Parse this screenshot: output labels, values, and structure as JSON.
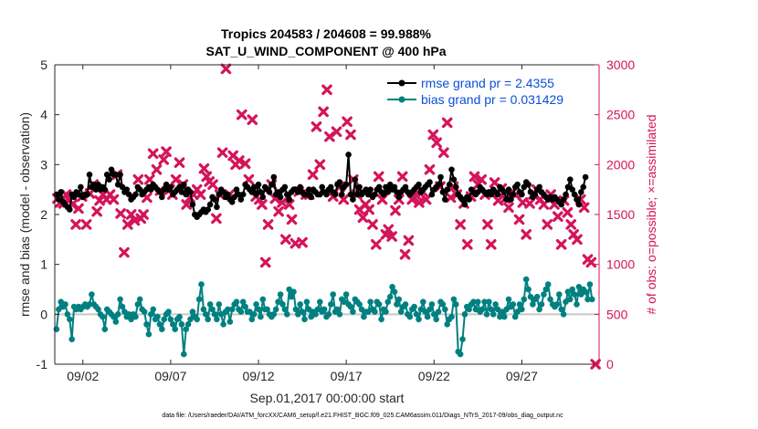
{
  "chart_data": {
    "type": "scatter",
    "title_line1": "Tropics 204583 / 204608 = 99.988%",
    "title_line2": "SAT_U_WIND_COMPONENT @ 400 hPa",
    "xlabel": "Sep.01,2017 00:00:00 start",
    "ylabel_left": "rmse and bias (model - observation)",
    "ylabel_right": "# of obs: o=possible; ×=assimilated",
    "footnote": "data file: /Users/raeder/DAI/ATM_forcXX/CAM6_setup/f.e21.FHIST_BGC.f09_025.CAM6assim.011/Diags_NTrS_2017-09/obs_diag_output.nc",
    "x_range": [
      0.4,
      31.4
    ],
    "y_left_range": [
      -1,
      5
    ],
    "y_right_range": [
      0,
      3000
    ],
    "x_ticks": [
      {
        "x": 2,
        "label": "09/02"
      },
      {
        "x": 7,
        "label": "09/07"
      },
      {
        "x": 12,
        "label": "09/12"
      },
      {
        "x": 17,
        "label": "09/17"
      },
      {
        "x": 22,
        "label": "09/22"
      },
      {
        "x": 27,
        "label": "09/27"
      }
    ],
    "y_left_ticks": [
      "-1",
      "0",
      "1",
      "2",
      "3",
      "4",
      "5"
    ],
    "y_right_ticks": [
      "0",
      "500",
      "1000",
      "1500",
      "2000",
      "2500",
      "3000"
    ],
    "zero_line": 0,
    "legend": [
      {
        "label": "rmse grand pr = 2.4355",
        "color": "#000000"
      },
      {
        "label": "bias grand pr = 0.031429",
        "color": "#008080"
      }
    ],
    "colors": {
      "rmse": "#000000",
      "bias": "#008080",
      "obs": "#d4145a",
      "zero": "#c8c8c8",
      "axis": "#262626"
    },
    "t0": 0.5,
    "dt": 0.125,
    "rmse": [
      2.4,
      2.3,
      2.45,
      2.25,
      2.2,
      2.15,
      2.1,
      2.4,
      2.35,
      2.45,
      2.4,
      2.55,
      2.35,
      2.4,
      2.4,
      2.8,
      2.55,
      2.6,
      2.5,
      2.6,
      2.5,
      2.55,
      2.5,
      2.8,
      2.7,
      2.9,
      2.8,
      2.8,
      2.6,
      2.8,
      2.55,
      2.45,
      2.5,
      2.4,
      2.3,
      2.35,
      2.4,
      2.55,
      2.5,
      2.4,
      2.45,
      2.5,
      2.55,
      2.5,
      2.6,
      2.55,
      2.5,
      2.45,
      2.35,
      2.5,
      2.6,
      2.5,
      2.55,
      2.4,
      2.45,
      2.5,
      2.55,
      2.45,
      2.6,
      2.4,
      2.5,
      2.45,
      2.2,
      2.0,
      1.95,
      2.0,
      2.05,
      2.1,
      2.05,
      2.1,
      2.2,
      2.35,
      2.3,
      2.15,
      2.4,
      2.5,
      2.45,
      2.35,
      2.4,
      2.3,
      2.25,
      2.35,
      2.5,
      2.4,
      2.3,
      2.4,
      2.6,
      2.55,
      2.5,
      2.45,
      2.55,
      2.4,
      2.6,
      2.45,
      2.35,
      2.55,
      2.5,
      2.45,
      2.6,
      2.75,
      2.4,
      2.45,
      2.35,
      2.5,
      2.55,
      2.4,
      2.3,
      2.45,
      2.5,
      2.5,
      2.45,
      2.55,
      2.45,
      2.4,
      2.4,
      2.5,
      2.35,
      2.5,
      2.45,
      2.4,
      2.4,
      2.55,
      2.45,
      2.4,
      2.5,
      2.55,
      2.45,
      2.4,
      2.6,
      2.65,
      2.4,
      2.55,
      2.6,
      3.2,
      2.4,
      2.3,
      2.7,
      2.4,
      2.55,
      2.4,
      2.45,
      2.5,
      2.4,
      2.5,
      2.35,
      2.4,
      2.5,
      2.55,
      2.45,
      2.4,
      2.55,
      2.45,
      2.6,
      2.5,
      2.55,
      2.45,
      2.35,
      2.45,
      2.5,
      2.55,
      2.45,
      2.4,
      2.45,
      2.5,
      2.55,
      2.6,
      2.45,
      2.5,
      2.55,
      2.6,
      2.65,
      2.4,
      2.5,
      2.55,
      2.6,
      2.75,
      2.45,
      2.3,
      2.5,
      2.6,
      2.9,
      2.7,
      2.55,
      2.4,
      2.35,
      2.3,
      2.2,
      2.35,
      2.3,
      2.5,
      2.45,
      2.4,
      2.45,
      2.55,
      2.5,
      2.45,
      2.4,
      2.45,
      2.4,
      2.5,
      2.45,
      2.4,
      2.55,
      2.5,
      2.45,
      2.3,
      2.5,
      2.3,
      2.4,
      2.55,
      2.6,
      2.45,
      2.4,
      2.55,
      2.65,
      2.6,
      2.45,
      2.35,
      2.4,
      2.5,
      2.55,
      2.45,
      2.4,
      2.35,
      2.3,
      2.35,
      2.3,
      2.35,
      2.3,
      2.25,
      2.2,
      2.3,
      2.4,
      2.55,
      2.7,
      2.5,
      2.4,
      2.3,
      2.2,
      2.45,
      2.55,
      2.75
    ],
    "bias": [
      -0.3,
      0.1,
      0.25,
      0.15,
      0.2,
      0.0,
      -0.1,
      -0.5,
      0.15,
      0.1,
      0.15,
      0.1,
      0.15,
      0.2,
      0.15,
      0.2,
      0.4,
      0.2,
      0.15,
      0.1,
      0.0,
      -0.05,
      -0.3,
      0.1,
      0.05,
      0.0,
      -0.05,
      -0.15,
      0.0,
      0.3,
      0.15,
      0.05,
      -0.05,
      0.0,
      -0.1,
      0.0,
      -0.05,
      0.2,
      0.3,
      0.1,
      0.05,
      -0.2,
      -0.4,
      0.0,
      0.1,
      -0.1,
      -0.05,
      -0.2,
      -0.3,
      -0.1,
      0.0,
      0.05,
      -0.1,
      -0.2,
      -0.3,
      -0.1,
      -0.05,
      -0.2,
      -0.8,
      -0.3,
      -0.2,
      -0.1,
      0.05,
      -0.05,
      -0.1,
      0.3,
      0.6,
      0.1,
      0.0,
      -0.1,
      0.2,
      0.1,
      0.0,
      -0.1,
      0.2,
      0.0,
      -0.2,
      0.05,
      0.1,
      -0.15,
      0.1,
      0.2,
      0.25,
      0.1,
      0.05,
      0.25,
      0.15,
      0.05,
      0.05,
      -0.1,
      0.0,
      0.2,
      0.1,
      -0.05,
      0.3,
      0.1,
      0.1,
      0.0,
      -0.05,
      0.0,
      0.1,
      0.25,
      0.4,
      0.2,
      0.1,
      0.0,
      0.5,
      0.35,
      0.45,
      0.1,
      0.0,
      0.2,
      0.05,
      -0.1,
      0.25,
      0.1,
      -0.05,
      0.05,
      0.0,
      0.1,
      0.25,
      0.05,
      0.1,
      -0.05,
      0.0,
      0.2,
      0.4,
      0.05,
      0.1,
      0.0,
      0.3,
      0.25,
      0.4,
      0.2,
      0.15,
      0.05,
      0.3,
      0.25,
      0.2,
      0.1,
      -0.05,
      0.05,
      0.05,
      0.25,
      0.1,
      0.05,
      0.25,
      0.2,
      -0.1,
      0.1,
      0.05,
      0.25,
      0.35,
      0.55,
      0.45,
      0.2,
      0.3,
      0.05,
      0.15,
      0.2,
      0.0,
      -0.05,
      0.1,
      0.15,
      0.0,
      -0.1,
      0.1,
      0.25,
      0.05,
      -0.05,
      0.1,
      0.2,
      0.0,
      -0.1,
      0.05,
      0.25,
      0.2,
      0.1,
      -0.2,
      -0.1,
      -0.05,
      0.3,
      0.2,
      -0.75,
      -0.8,
      -0.5,
      0.0,
      0.15,
      0.1,
      0.2,
      0.25,
      0.1,
      0.25,
      0.05,
      0.1,
      0.25,
      0.0,
      0.25,
      0.1,
      0.0,
      0.2,
      0.1,
      -0.05,
      0.05,
      -0.05,
      0.1,
      0.3,
      0.15,
      0.2,
      -0.05,
      0.05,
      0.2,
      0.1,
      0.3,
      0.7,
      0.5,
      0.35,
      0.2,
      0.3,
      0.35,
      0.1,
      0.2,
      0.4,
      0.5,
      0.6,
      0.3,
      0.2,
      0.15,
      0.2,
      0.4,
      0.1,
      0.0,
      0.25,
      0.45,
      0.3,
      0.5,
      0.4,
      0.2,
      0.55,
      0.4,
      0.5,
      0.45,
      0.3,
      0.6,
      0.3
    ],
    "obs_assimilated": [
      {
        "x": 0.55,
        "n": 1660
      },
      {
        "x": 0.7,
        "n": 1620
      },
      {
        "x": 0.9,
        "n": 1610
      },
      {
        "x": 1.05,
        "n": 1700
      },
      {
        "x": 1.2,
        "n": 1650
      },
      {
        "x": 1.4,
        "n": 1600
      },
      {
        "x": 1.6,
        "n": 1400
      },
      {
        "x": 1.75,
        "n": 1560
      },
      {
        "x": 1.95,
        "n": 1680
      },
      {
        "x": 2.2,
        "n": 1400
      },
      {
        "x": 2.4,
        "n": 1710
      },
      {
        "x": 2.6,
        "n": 1800
      },
      {
        "x": 2.8,
        "n": 1530
      },
      {
        "x": 2.95,
        "n": 1640
      },
      {
        "x": 3.15,
        "n": 1700
      },
      {
        "x": 3.35,
        "n": 1650
      },
      {
        "x": 3.55,
        "n": 1700
      },
      {
        "x": 3.75,
        "n": 1650
      },
      {
        "x": 3.95,
        "n": 1900
      },
      {
        "x": 4.15,
        "n": 1510
      },
      {
        "x": 4.35,
        "n": 1120
      },
      {
        "x": 4.55,
        "n": 1400
      },
      {
        "x": 4.75,
        "n": 1500
      },
      {
        "x": 4.95,
        "n": 1440
      },
      {
        "x": 5.15,
        "n": 1850
      },
      {
        "x": 5.3,
        "n": 1460
      },
      {
        "x": 5.45,
        "n": 1500
      },
      {
        "x": 5.65,
        "n": 1670
      },
      {
        "x": 5.8,
        "n": 1850
      },
      {
        "x": 6.0,
        "n": 2110
      },
      {
        "x": 6.2,
        "n": 1950
      },
      {
        "x": 6.4,
        "n": 1740
      },
      {
        "x": 6.6,
        "n": 2050
      },
      {
        "x": 6.75,
        "n": 2130
      },
      {
        "x": 6.95,
        "n": 1750
      },
      {
        "x": 7.1,
        "n": 1700
      },
      {
        "x": 7.3,
        "n": 1850
      },
      {
        "x": 7.5,
        "n": 2020
      },
      {
        "x": 7.7,
        "n": 1800
      },
      {
        "x": 7.9,
        "n": 1600
      },
      {
        "x": 8.1,
        "n": 1670
      },
      {
        "x": 8.3,
        "n": 1700
      },
      {
        "x": 8.5,
        "n": 1750
      },
      {
        "x": 8.7,
        "n": 1700
      },
      {
        "x": 8.9,
        "n": 1960
      },
      {
        "x": 9.05,
        "n": 1880
      },
      {
        "x": 9.2,
        "n": 1830
      },
      {
        "x": 9.4,
        "n": 1800
      },
      {
        "x": 9.6,
        "n": 1460
      },
      {
        "x": 9.8,
        "n": 1700
      },
      {
        "x": 9.95,
        "n": 2120
      },
      {
        "x": 10.15,
        "n": 2960
      },
      {
        "x": 10.35,
        "n": 1700
      },
      {
        "x": 10.55,
        "n": 2090
      },
      {
        "x": 10.7,
        "n": 2000
      },
      {
        "x": 10.9,
        "n": 2040
      },
      {
        "x": 11.05,
        "n": 2500
      },
      {
        "x": 11.25,
        "n": 2010
      },
      {
        "x": 11.45,
        "n": 1850
      },
      {
        "x": 11.65,
        "n": 2450
      },
      {
        "x": 11.85,
        "n": 1680
      },
      {
        "x": 12.05,
        "n": 1650
      },
      {
        "x": 12.2,
        "n": 1600
      },
      {
        "x": 12.4,
        "n": 1020
      },
      {
        "x": 12.55,
        "n": 1400
      },
      {
        "x": 12.75,
        "n": 1800
      },
      {
        "x": 12.95,
        "n": 1660
      },
      {
        "x": 13.15,
        "n": 1530
      },
      {
        "x": 13.35,
        "n": 1620
      },
      {
        "x": 13.55,
        "n": 1250
      },
      {
        "x": 13.75,
        "n": 1600
      },
      {
        "x": 13.9,
        "n": 1450
      },
      {
        "x": 14.1,
        "n": 1210
      },
      {
        "x": 14.3,
        "n": 1730
      },
      {
        "x": 14.5,
        "n": 1220
      },
      {
        "x": 14.7,
        "n": 1700
      },
      {
        "x": 14.9,
        "n": 1700
      },
      {
        "x": 15.1,
        "n": 1900
      },
      {
        "x": 15.3,
        "n": 2380
      },
      {
        "x": 15.5,
        "n": 2000
      },
      {
        "x": 15.7,
        "n": 2530
      },
      {
        "x": 15.9,
        "n": 2750
      },
      {
        "x": 16.05,
        "n": 2280
      },
      {
        "x": 16.25,
        "n": 1680
      },
      {
        "x": 16.45,
        "n": 2330
      },
      {
        "x": 16.65,
        "n": 1780
      },
      {
        "x": 16.85,
        "n": 1650
      },
      {
        "x": 17.05,
        "n": 2430
      },
      {
        "x": 17.25,
        "n": 2300
      },
      {
        "x": 17.4,
        "n": 1850
      },
      {
        "x": 17.6,
        "n": 1700
      },
      {
        "x": 17.75,
        "n": 1550
      },
      {
        "x": 17.95,
        "n": 1470
      },
      {
        "x": 18.1,
        "n": 1600
      },
      {
        "x": 18.3,
        "n": 1550
      },
      {
        "x": 18.5,
        "n": 1400
      },
      {
        "x": 18.7,
        "n": 1200
      },
      {
        "x": 18.85,
        "n": 1880
      },
      {
        "x": 19.05,
        "n": 1650
      },
      {
        "x": 19.25,
        "n": 1300
      },
      {
        "x": 19.4,
        "n": 1350
      },
      {
        "x": 19.6,
        "n": 1280
      },
      {
        "x": 19.8,
        "n": 1540
      },
      {
        "x": 20.0,
        "n": 1650
      },
      {
        "x": 20.2,
        "n": 1880
      },
      {
        "x": 20.35,
        "n": 1100
      },
      {
        "x": 20.55,
        "n": 1240
      },
      {
        "x": 20.75,
        "n": 1650
      },
      {
        "x": 20.95,
        "n": 1700
      },
      {
        "x": 21.15,
        "n": 1620
      },
      {
        "x": 21.35,
        "n": 1730
      },
      {
        "x": 21.55,
        "n": 1650
      },
      {
        "x": 21.75,
        "n": 1950
      },
      {
        "x": 21.95,
        "n": 2300
      },
      {
        "x": 22.15,
        "n": 2220
      },
      {
        "x": 22.35,
        "n": 1780
      },
      {
        "x": 22.55,
        "n": 2120
      },
      {
        "x": 22.75,
        "n": 2420
      },
      {
        "x": 22.95,
        "n": 1670
      },
      {
        "x": 23.1,
        "n": 1780
      },
      {
        "x": 23.3,
        "n": 1700
      },
      {
        "x": 23.5,
        "n": 1400
      },
      {
        "x": 23.7,
        "n": 1610
      },
      {
        "x": 23.9,
        "n": 1200
      },
      {
        "x": 24.1,
        "n": 1680
      },
      {
        "x": 24.3,
        "n": 1880
      },
      {
        "x": 24.5,
        "n": 1800
      },
      {
        "x": 24.7,
        "n": 1850
      },
      {
        "x": 24.9,
        "n": 1700
      },
      {
        "x": 25.05,
        "n": 1400
      },
      {
        "x": 25.25,
        "n": 1200
      },
      {
        "x": 25.45,
        "n": 1820
      },
      {
        "x": 25.65,
        "n": 1640
      },
      {
        "x": 25.85,
        "n": 1760
      },
      {
        "x": 26.05,
        "n": 1660
      },
      {
        "x": 26.25,
        "n": 1570
      },
      {
        "x": 26.45,
        "n": 1720
      },
      {
        "x": 26.65,
        "n": 1700
      },
      {
        "x": 26.85,
        "n": 1450
      },
      {
        "x": 27.05,
        "n": 1620
      },
      {
        "x": 27.25,
        "n": 1300
      },
      {
        "x": 27.45,
        "n": 1610
      },
      {
        "x": 27.65,
        "n": 1700
      },
      {
        "x": 27.85,
        "n": 1750
      },
      {
        "x": 28.05,
        "n": 1650
      },
      {
        "x": 28.25,
        "n": 1600
      },
      {
        "x": 28.45,
        "n": 1400
      },
      {
        "x": 28.65,
        "n": 1700
      },
      {
        "x": 28.85,
        "n": 1600
      },
      {
        "x": 29.05,
        "n": 1480
      },
      {
        "x": 29.25,
        "n": 1200
      },
      {
        "x": 29.4,
        "n": 1640
      },
      {
        "x": 29.6,
        "n": 1520
      },
      {
        "x": 29.8,
        "n": 1400
      },
      {
        "x": 29.95,
        "n": 1300
      },
      {
        "x": 30.15,
        "n": 1250
      },
      {
        "x": 30.35,
        "n": 1650
      },
      {
        "x": 30.55,
        "n": 1570
      },
      {
        "x": 30.75,
        "n": 1050
      },
      {
        "x": 30.95,
        "n": 1020
      },
      {
        "x": 31.2,
        "n": 0
      }
    ]
  }
}
